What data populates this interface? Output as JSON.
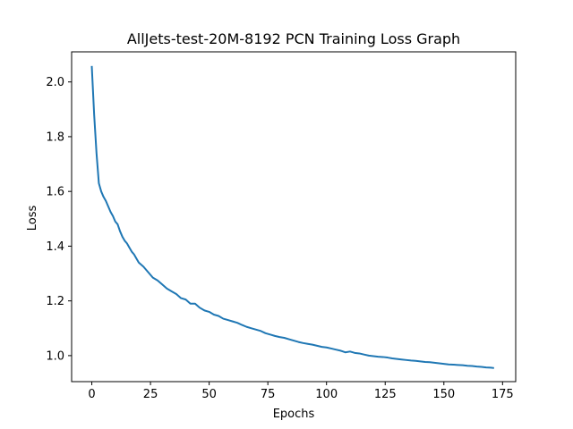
{
  "chart_data": {
    "type": "line",
    "title": "AllJets-test-20M-8192 PCN Training Loss Graph",
    "xlabel": "Epochs",
    "ylabel": "Loss",
    "xlim": [
      -8.6,
      180.6
    ],
    "ylim": [
      0.905,
      2.11
    ],
    "xticks": [
      0,
      25,
      50,
      75,
      100,
      125,
      150,
      175
    ],
    "yticks": [
      1.0,
      1.2,
      1.4,
      1.6,
      1.8,
      2.0
    ],
    "ytick_labels": [
      "1.0",
      "1.2",
      "1.4",
      "1.6",
      "1.8",
      "2.0"
    ],
    "grid": false,
    "series": [
      {
        "color": "#1f77b4",
        "x": [
          0,
          1,
          2,
          3,
          4,
          5,
          6,
          7,
          8,
          9,
          10,
          11,
          12,
          13,
          14,
          15,
          16,
          17,
          18,
          19,
          20,
          22,
          24,
          26,
          28,
          30,
          32,
          34,
          36,
          38,
          40,
          42,
          44,
          46,
          48,
          50,
          52,
          54,
          56,
          58,
          60,
          62,
          64,
          66,
          68,
          70,
          72,
          74,
          76,
          78,
          80,
          82,
          84,
          86,
          88,
          90,
          92,
          94,
          96,
          98,
          100,
          102,
          104,
          106,
          108,
          110,
          112,
          114,
          116,
          118,
          120,
          122,
          124,
          126,
          128,
          130,
          132,
          134,
          136,
          138,
          140,
          142,
          144,
          146,
          148,
          150,
          152,
          154,
          156,
          158,
          160,
          162,
          164,
          166,
          168,
          170,
          171
        ],
        "values": [
          2.055,
          1.88,
          1.74,
          1.63,
          1.6,
          1.58,
          1.565,
          1.545,
          1.525,
          1.51,
          1.49,
          1.48,
          1.455,
          1.435,
          1.42,
          1.41,
          1.395,
          1.38,
          1.37,
          1.355,
          1.34,
          1.325,
          1.305,
          1.285,
          1.275,
          1.26,
          1.245,
          1.235,
          1.225,
          1.21,
          1.205,
          1.19,
          1.19,
          1.175,
          1.165,
          1.16,
          1.15,
          1.145,
          1.135,
          1.13,
          1.125,
          1.12,
          1.112,
          1.105,
          1.1,
          1.095,
          1.09,
          1.082,
          1.077,
          1.072,
          1.068,
          1.065,
          1.06,
          1.055,
          1.05,
          1.046,
          1.043,
          1.04,
          1.036,
          1.032,
          1.03,
          1.026,
          1.022,
          1.018,
          1.012,
          1.015,
          1.01,
          1.008,
          1.004,
          1.0,
          0.998,
          0.996,
          0.995,
          0.993,
          0.99,
          0.988,
          0.986,
          0.984,
          0.982,
          0.981,
          0.979,
          0.977,
          0.976,
          0.974,
          0.972,
          0.97,
          0.968,
          0.967,
          0.966,
          0.965,
          0.963,
          0.962,
          0.96,
          0.959,
          0.957,
          0.956,
          0.955
        ]
      }
    ]
  }
}
